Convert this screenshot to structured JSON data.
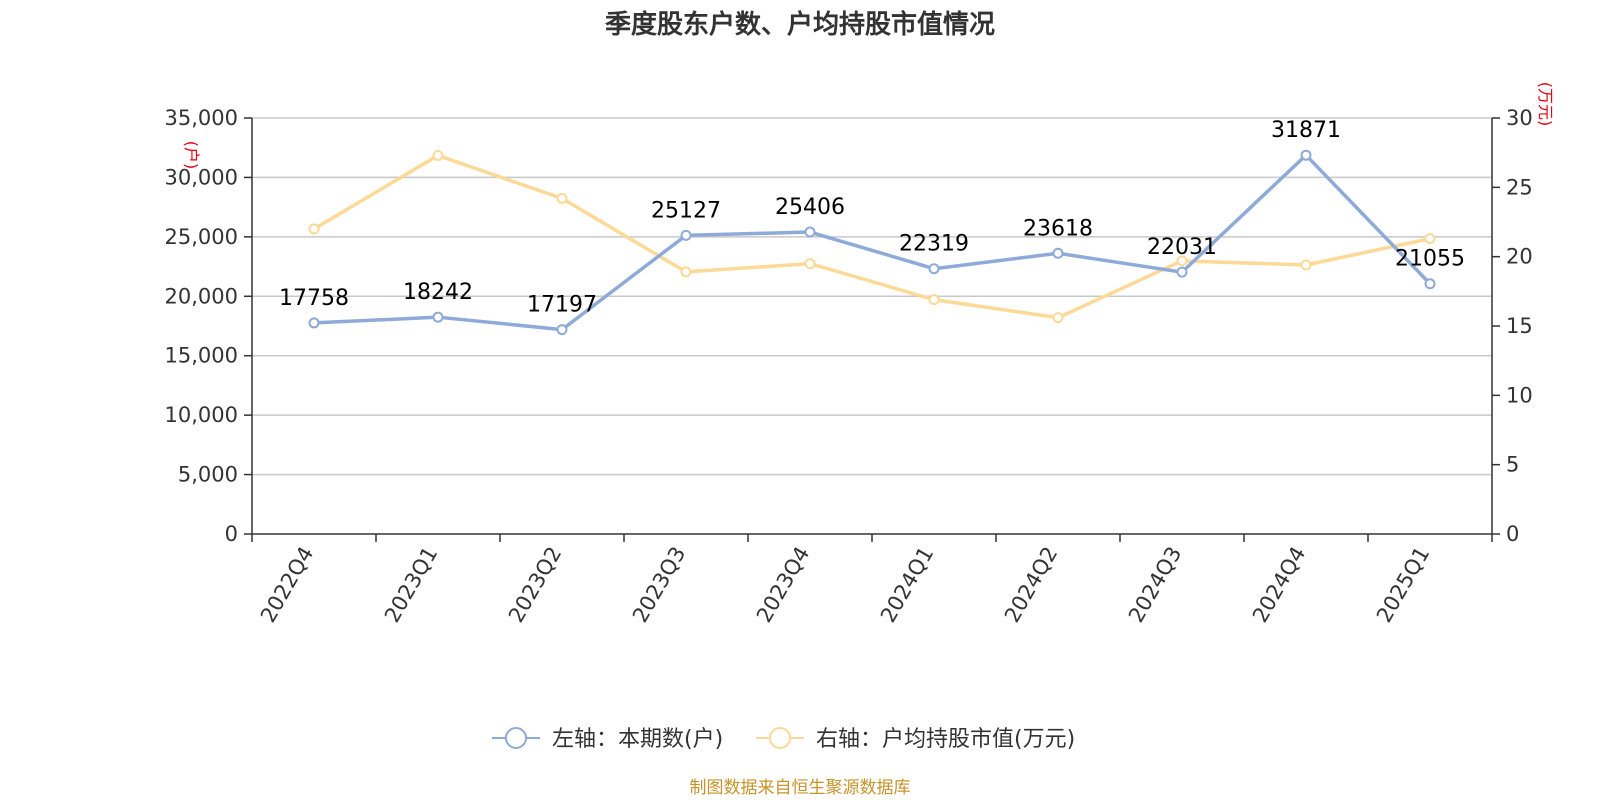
{
  "title": "季度股东户数、户均持股市值情况",
  "left_unit": "(户)",
  "right_unit": "(万元)",
  "source": "制图数据来自恒生聚源数据库",
  "colors": {
    "left_series": "#8eaad8",
    "right_series": "#fcd997",
    "unit": "#e60012",
    "source": "#c8932b"
  },
  "legend": [
    {
      "label": "左轴：本期数(户)",
      "icon": "circle-line-icon"
    },
    {
      "label": "右轴：户均持股市值(万元)",
      "icon": "circle-line-icon"
    }
  ],
  "chart_data": {
    "type": "line",
    "title": "季度股东户数、户均持股市值情况",
    "categories": [
      "2022Q4",
      "2023Q1",
      "2023Q2",
      "2023Q3",
      "2023Q4",
      "2024Q1",
      "2024Q2",
      "2024Q3",
      "2024Q4",
      "2025Q1"
    ],
    "left_axis": {
      "unit": "(户)",
      "ylim": [
        0,
        35000
      ],
      "ticks": [
        "0",
        "5,000",
        "10,000",
        "15,000",
        "20,000",
        "25,000",
        "30,000",
        "35,000"
      ],
      "tick_values": [
        0,
        5000,
        10000,
        15000,
        20000,
        25000,
        30000,
        35000
      ]
    },
    "right_axis": {
      "unit": "(万元)",
      "ylim": [
        0,
        30
      ],
      "ticks": [
        "0",
        "5",
        "10",
        "15",
        "20",
        "25",
        "30"
      ],
      "tick_values": [
        0,
        5,
        10,
        15,
        20,
        25,
        30
      ]
    },
    "series": [
      {
        "name": "左轴：本期数(户)",
        "axis": "left",
        "values": [
          17758,
          18242,
          17197,
          25127,
          25406,
          22319,
          23618,
          22031,
          31871,
          21055
        ],
        "labels": [
          "17758",
          "18242",
          "17197",
          "25127",
          "25406",
          "22319",
          "23618",
          "22031",
          "31871",
          "21055"
        ]
      },
      {
        "name": "右轴：户均持股市值(万元)",
        "axis": "right",
        "values": [
          22.0,
          27.3,
          24.2,
          18.9,
          19.5,
          16.9,
          15.6,
          19.7,
          19.4,
          21.3
        ]
      }
    ],
    "grid": true,
    "legend_position": "bottom"
  }
}
